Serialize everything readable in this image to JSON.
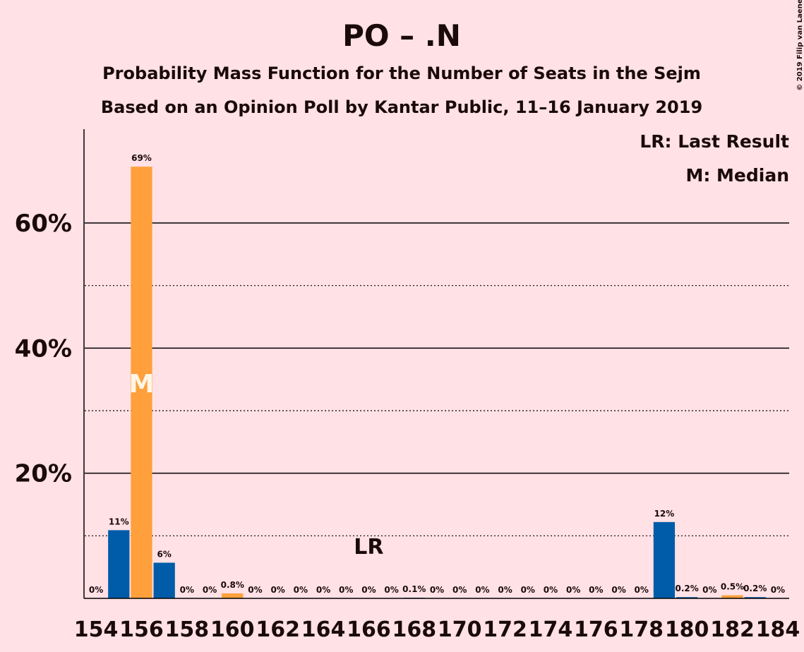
{
  "chart_data": {
    "type": "bar",
    "title": "PO – .N",
    "subtitle": "Probability Mass Function for the Number of Seats in the Sejm",
    "subtitle2": "Based on an Opinion Poll by Kantar Public, 11–16 January 2019",
    "copyright": "© 2019 Filip van Laenen",
    "legend": [
      "LR: Last Result",
      "M: Median"
    ],
    "legend_position": "top-right",
    "categories": [
      154,
      null,
      156,
      null,
      158,
      null,
      160,
      null,
      162,
      null,
      164,
      null,
      166,
      null,
      168,
      null,
      170,
      null,
      172,
      null,
      174,
      null,
      176,
      null,
      178,
      null,
      180,
      null,
      182,
      null,
      184
    ],
    "values": [
      0,
      10.9,
      69,
      5.7,
      0,
      0,
      0.8,
      0,
      0,
      0,
      0,
      0,
      0,
      0,
      0.1,
      0,
      0,
      0,
      0,
      0,
      0,
      0,
      0,
      0,
      0,
      12.2,
      0.2,
      0,
      0.5,
      0.2,
      0
    ],
    "value_labels": [
      "0%",
      "11%",
      "69%",
      "6%",
      "0%",
      "0%",
      "0.8%",
      "0%",
      "0%",
      "0%",
      "0%",
      "0%",
      "0%",
      "0%",
      "0.1%",
      "0%",
      "0%",
      "0%",
      "0%",
      "0%",
      "0%",
      "0%",
      "0%",
      "0%",
      "0%",
      "12%",
      "0.2%",
      "0%",
      "0.5%",
      "0.2%",
      "0%"
    ],
    "colors": [
      "#005ca8",
      "#005ca8",
      "#ffa03c",
      "#005ca8",
      "#005ca8",
      "#005ca8",
      "#ffa03c",
      "#005ca8",
      "#005ca8",
      "#005ca8",
      "#005ca8",
      "#005ca8",
      "#005ca8",
      "#005ca8",
      "#005ca8",
      "#005ca8",
      "#005ca8",
      "#005ca8",
      "#005ca8",
      "#005ca8",
      "#005ca8",
      "#005ca8",
      "#005ca8",
      "#005ca8",
      "#005ca8",
      "#005ca8",
      "#005ca8",
      "#005ca8",
      "#ffa03c",
      "#005ca8",
      "#005ca8"
    ],
    "last_result": {
      "label": "LR",
      "category": 166
    },
    "median": {
      "label": "M",
      "category": 156
    },
    "ylim": [
      0,
      75
    ],
    "yticks": [
      {
        "value": 20,
        "label": "20%"
      },
      {
        "value": 40,
        "label": "40%"
      },
      {
        "value": 60,
        "label": "60%"
      }
    ],
    "minor_gridlines": [
      10,
      30,
      50
    ],
    "grid": true
  }
}
